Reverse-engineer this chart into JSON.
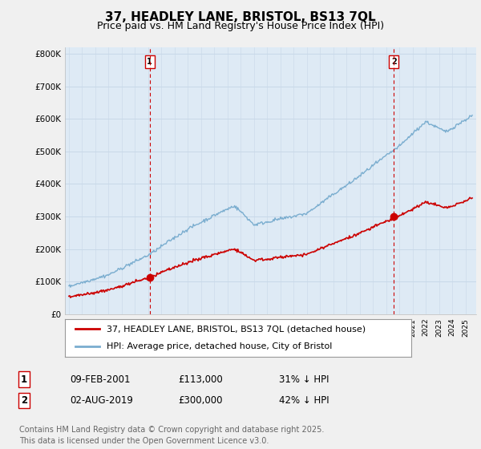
{
  "title": "37, HEADLEY LANE, BRISTOL, BS13 7QL",
  "subtitle": "Price paid vs. HM Land Registry's House Price Index (HPI)",
  "ylabel_ticks": [
    "£0",
    "£100K",
    "£200K",
    "£300K",
    "£400K",
    "£500K",
    "£600K",
    "£700K",
    "£800K"
  ],
  "ytick_values": [
    0,
    100000,
    200000,
    300000,
    400000,
    500000,
    600000,
    700000,
    800000
  ],
  "ylim": [
    0,
    820000
  ],
  "xlim_start": 1994.7,
  "xlim_end": 2025.8,
  "transaction1_date": 2001.11,
  "transaction1_price": 113000,
  "transaction1_label": "1",
  "transaction2_date": 2019.58,
  "transaction2_price": 300000,
  "transaction2_label": "2",
  "line_color_red": "#cc0000",
  "line_color_blue": "#7aadcf",
  "vline_color": "#cc0000",
  "grid_color": "#c8d8e8",
  "plot_bg_color": "#deeaf5",
  "fig_bg_color": "#f0f0f0",
  "legend1_label": "37, HEADLEY LANE, BRISTOL, BS13 7QL (detached house)",
  "legend2_label": "HPI: Average price, detached house, City of Bristol",
  "table_row1": [
    "1",
    "09-FEB-2001",
    "£113,000",
    "31% ↓ HPI"
  ],
  "table_row2": [
    "2",
    "02-AUG-2019",
    "£300,000",
    "42% ↓ HPI"
  ],
  "footer": "Contains HM Land Registry data © Crown copyright and database right 2025.\nThis data is licensed under the Open Government Licence v3.0.",
  "title_fontsize": 11,
  "subtitle_fontsize": 9,
  "tick_fontsize": 7.5,
  "legend_fontsize": 8,
  "table_fontsize": 8.5,
  "footer_fontsize": 7
}
